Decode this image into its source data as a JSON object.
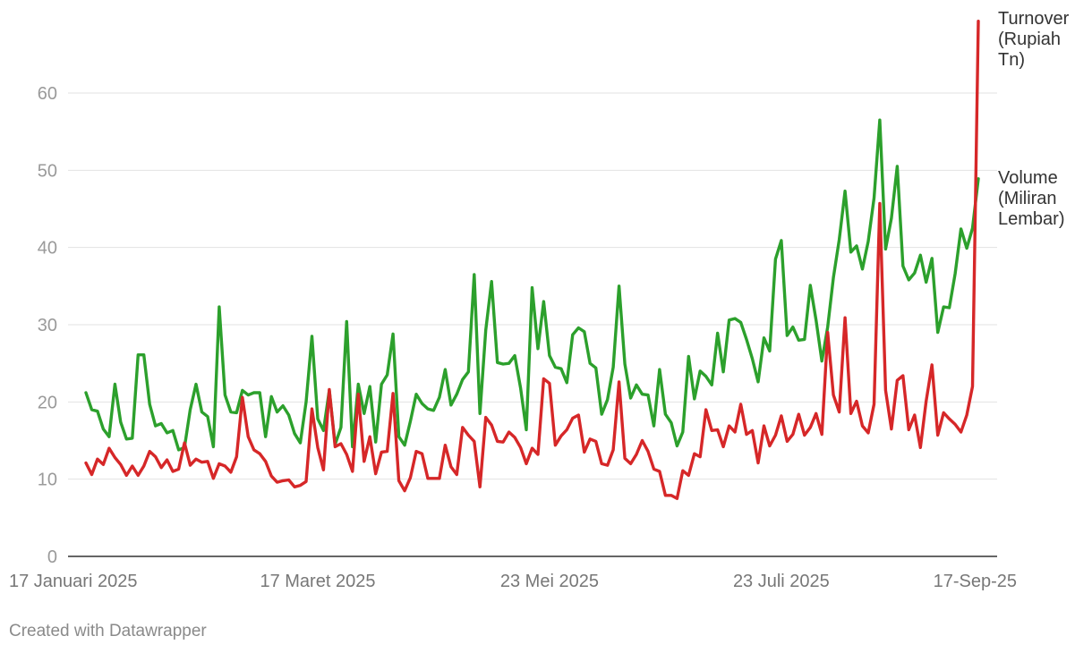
{
  "footer": {
    "credit": "Created with Datawrapper"
  },
  "colors": {
    "volume": "#2ca02c",
    "turnover": "#d62728",
    "grid": "#e2e2e2",
    "axis": "#333333"
  },
  "chart_data": {
    "type": "line",
    "title": "",
    "xlabel": "",
    "ylabel": "",
    "ylim": [
      0,
      70
    ],
    "yticks": [
      0,
      10,
      20,
      30,
      40,
      50,
      60
    ],
    "grid": true,
    "legend": "direct-labels-right",
    "xticks": [
      {
        "index": 0,
        "label": "17 Januari 2025"
      },
      {
        "index": 40,
        "label": "17 Maret 2025"
      },
      {
        "index": 80,
        "label": "23 Mei 2025"
      },
      {
        "index": 120,
        "label": "23 Juli 2025"
      },
      {
        "index": 160,
        "label": "17-Sep-25"
      }
    ],
    "series": [
      {
        "name": "Volume (Miliran Lembar)",
        "label_lines": [
          "Volume",
          "(Miliran",
          "Lembar)"
        ],
        "color": "#2ca02c",
        "values": [
          21.2,
          19.0,
          18.8,
          16.5,
          15.5,
          22.3,
          17.4,
          15.2,
          15.3,
          26.1,
          26.1,
          19.7,
          16.9,
          17.2,
          16.0,
          16.3,
          13.8,
          14.1,
          19.0,
          22.3,
          18.7,
          18.1,
          14.2,
          32.3,
          20.9,
          18.7,
          18.6,
          21.5,
          20.9,
          21.2,
          21.2,
          15.5,
          20.7,
          18.7,
          19.5,
          18.3,
          15.9,
          14.7,
          20.0,
          28.5,
          17.8,
          16.3,
          21.5,
          14.5,
          16.7,
          30.4,
          14.2,
          22.3,
          18.5,
          22.0,
          14.8,
          22.3,
          23.5,
          28.8,
          15.5,
          14.4,
          17.5,
          21.0,
          19.8,
          19.1,
          18.9,
          20.6,
          24.2,
          19.6,
          21.0,
          22.9,
          23.9,
          36.5,
          18.5,
          29.3,
          35.6,
          25.1,
          24.9,
          25.0,
          26.0,
          21.8,
          16.4,
          34.8,
          26.9,
          33.0,
          26.0,
          24.5,
          24.3,
          22.5,
          28.7,
          29.6,
          29.1,
          25.0,
          24.4,
          18.4,
          20.3,
          24.5,
          35.0,
          24.9,
          20.5,
          22.2,
          21.0,
          20.9,
          16.9,
          24.2,
          18.4,
          17.3,
          14.3,
          16.1,
          25.9,
          20.4,
          24.0,
          23.3,
          22.2,
          28.9,
          23.9,
          30.6,
          30.8,
          30.3,
          28.1,
          25.6,
          22.6,
          28.3,
          26.6,
          38.5,
          40.9,
          28.6,
          29.7,
          28.0,
          28.1,
          35.1,
          30.6,
          25.3,
          29.7,
          36.1,
          41.0,
          47.3,
          39.4,
          40.2,
          37.2,
          40.8,
          46.4,
          56.5,
          39.8,
          43.8,
          50.5,
          37.6,
          35.8,
          36.7,
          39.0,
          35.5,
          38.6,
          29.0,
          32.3,
          32.2,
          36.6,
          42.4,
          39.9,
          42.5,
          48.9
        ]
      },
      {
        "name": "Turnover (Rupiah Tn)",
        "label_lines": [
          "Turnover",
          "(Rupiah",
          "Tn)"
        ],
        "color": "#d62728",
        "values": [
          12.1,
          10.6,
          12.6,
          11.9,
          14.0,
          12.8,
          11.9,
          10.5,
          11.7,
          10.5,
          11.7,
          13.6,
          12.9,
          11.5,
          12.5,
          11.0,
          11.3,
          14.7,
          11.8,
          12.6,
          12.2,
          12.3,
          10.1,
          12.0,
          11.7,
          10.9,
          12.9,
          20.6,
          15.5,
          13.8,
          13.3,
          12.3,
          10.4,
          9.6,
          9.8,
          9.9,
          9.0,
          9.2,
          9.7,
          19.1,
          14.1,
          11.2,
          21.6,
          14.2,
          14.6,
          13.2,
          11.0,
          21.0,
          12.3,
          15.5,
          10.7,
          13.5,
          13.6,
          21.1,
          9.8,
          8.5,
          10.2,
          13.6,
          13.3,
          10.1,
          10.1,
          10.1,
          14.4,
          11.6,
          10.6,
          16.7,
          15.7,
          14.9,
          9.0,
          18.0,
          17.0,
          14.9,
          14.8,
          16.1,
          15.4,
          14.1,
          12.0,
          14.0,
          13.2,
          23.0,
          22.4,
          14.4,
          15.6,
          16.4,
          17.9,
          18.3,
          13.5,
          15.2,
          14.9,
          12.0,
          11.8,
          13.8,
          22.6,
          12.7,
          12.0,
          13.2,
          15.0,
          13.6,
          11.3,
          11.0,
          7.9,
          7.9,
          7.5,
          11.1,
          10.5,
          13.3,
          12.9,
          19.0,
          16.3,
          16.4,
          14.2,
          16.9,
          16.1,
          19.7,
          15.8,
          16.3,
          12.1,
          16.9,
          14.3,
          15.7,
          18.2,
          14.9,
          15.8,
          18.4,
          15.7,
          16.7,
          18.5,
          15.8,
          29.0,
          20.9,
          18.7,
          30.9,
          18.5,
          20.1,
          16.9,
          16.0,
          19.7,
          45.7,
          21.5,
          16.5,
          22.8,
          23.4,
          16.4,
          18.3,
          14.1,
          20.1,
          24.8,
          15.7,
          18.6,
          17.8,
          17.1,
          16.1,
          18.3,
          22.0,
          69.3
        ]
      }
    ]
  }
}
